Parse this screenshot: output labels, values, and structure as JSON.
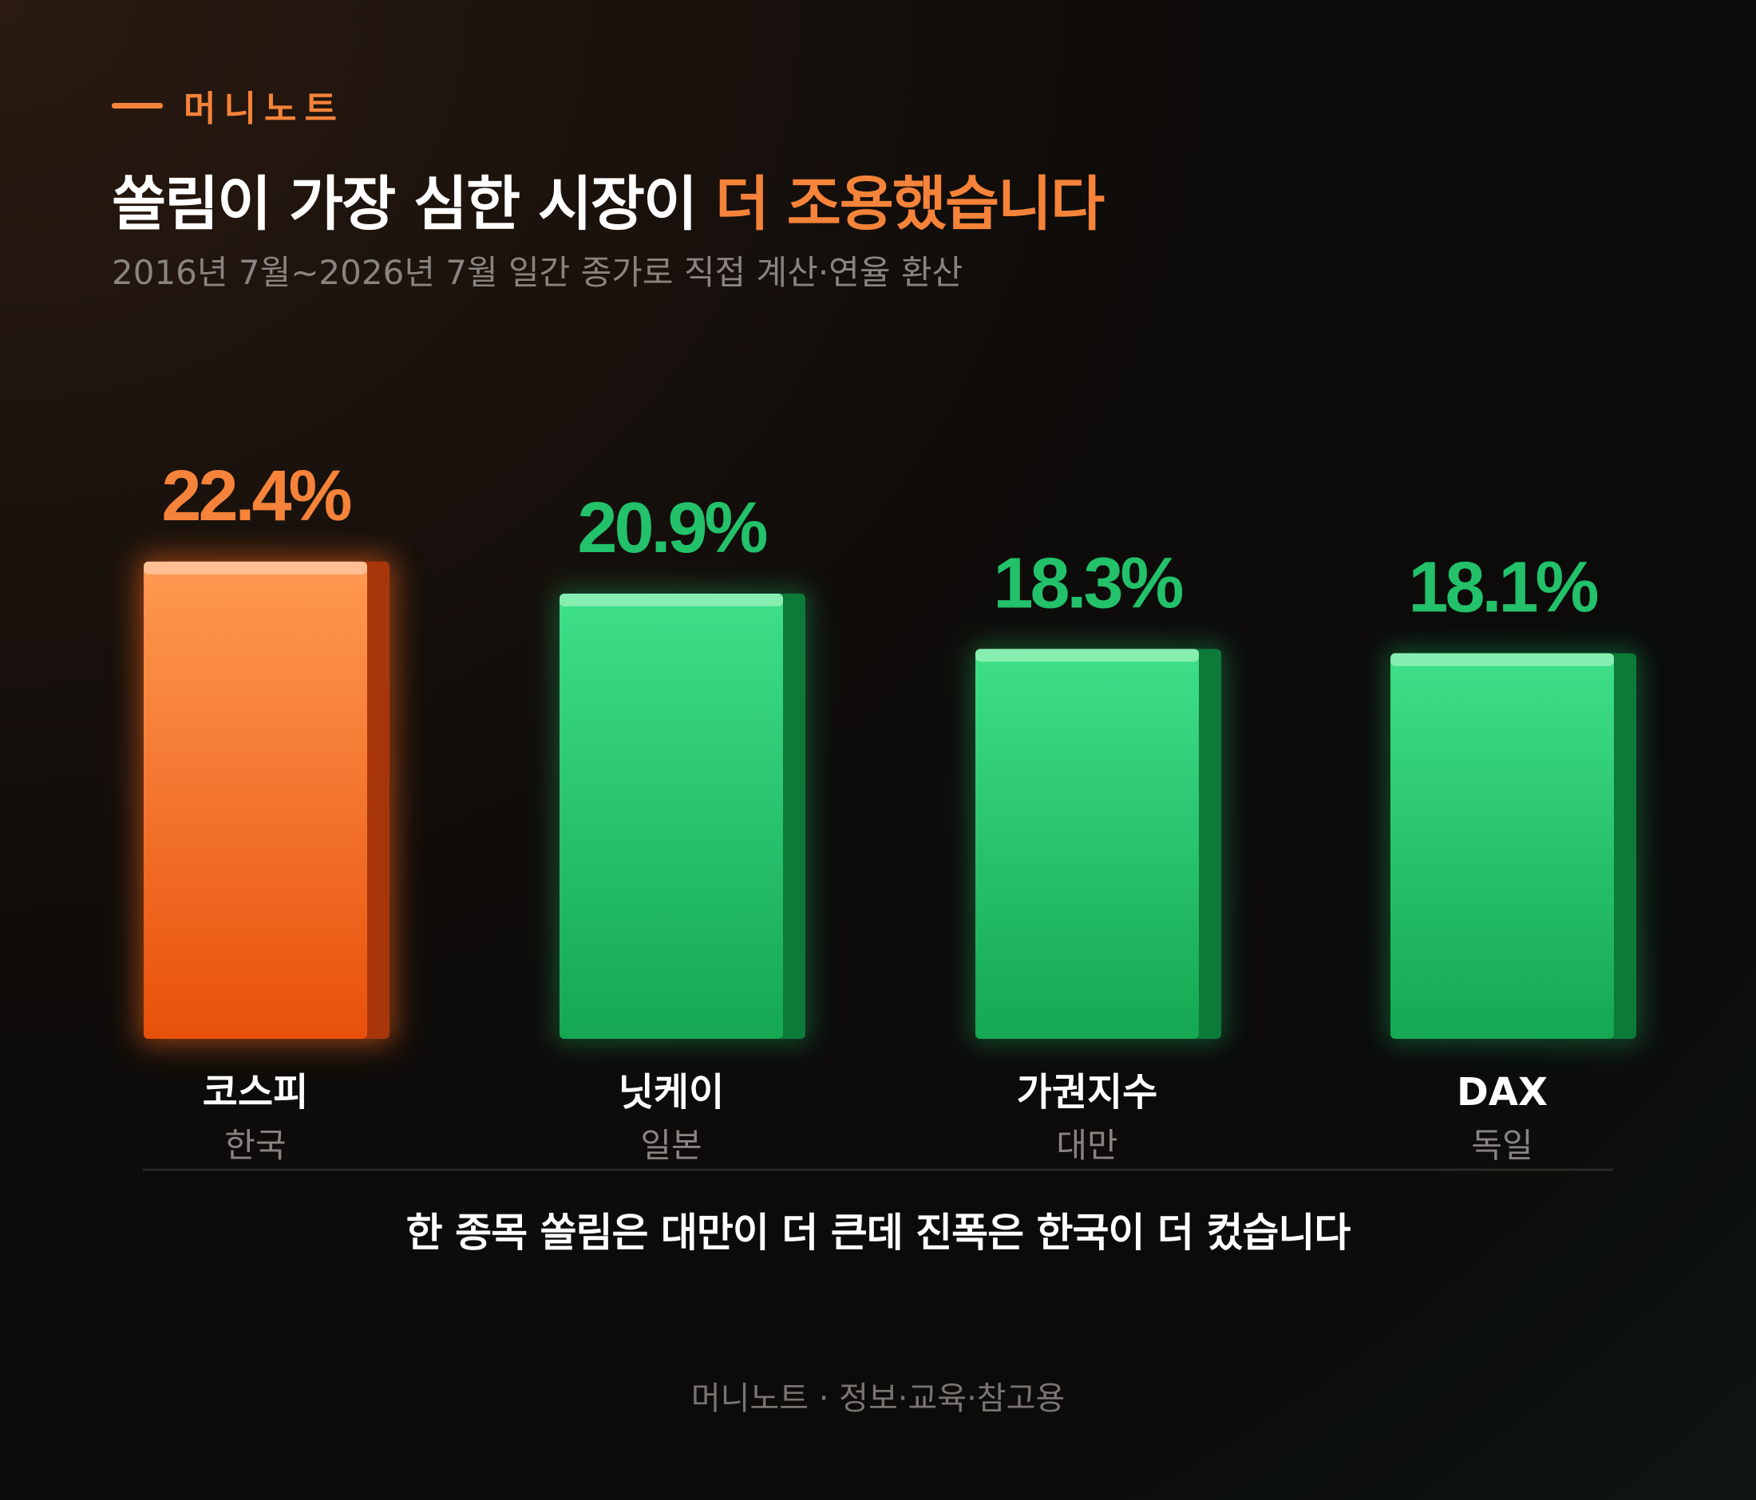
{
  "brand": {
    "text": "머니노트",
    "accent_color": "#f5833a"
  },
  "title": {
    "main": "쏠림이 가장 심한 시장이 ",
    "highlight": "더 조용했습니다"
  },
  "subtitle": "2016년 7월~2026년 7월 일간 종가로 직접 계산·연율 환산",
  "chart_data": {
    "type": "bar",
    "categories": [
      "코스피",
      "닛케이",
      "가권지수",
      "DAX"
    ],
    "sublabels": [
      "한국",
      "일본",
      "대만",
      "독일"
    ],
    "values": [
      22.4,
      20.9,
      18.3,
      18.1
    ],
    "value_labels": [
      "22.4%",
      "20.9%",
      "18.3%",
      "18.1%"
    ],
    "highlight_index": 0,
    "grid": false,
    "colors": {
      "highlight": "#f5833a",
      "default": "#22c16a"
    }
  },
  "footnote": "한 종목 쏠림은 대만이 더 큰데 진폭은 한국이 더 컸습니다",
  "footer": "머니노트 · 정보·교육·참고용"
}
